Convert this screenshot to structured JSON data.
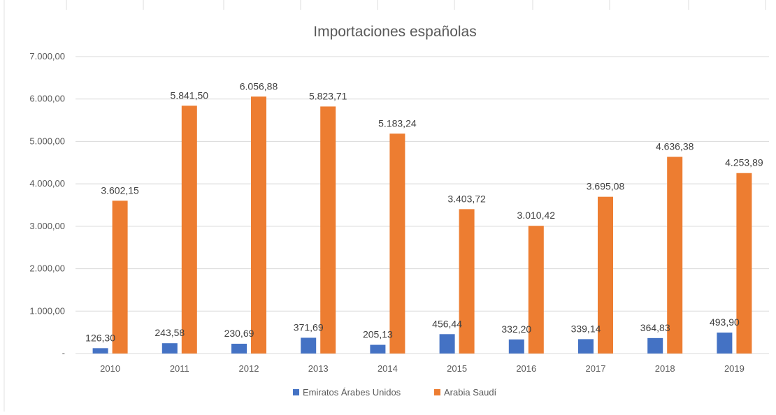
{
  "chart_data": {
    "type": "bar",
    "title": "Importaciones españolas",
    "categories": [
      "2010",
      "2011",
      "2012",
      "2013",
      "2014",
      "2015",
      "2016",
      "2017",
      "2018",
      "2019"
    ],
    "series": [
      {
        "name": "Emiratos Árabes Unidos",
        "values": [
          126.3,
          243.58,
          230.69,
          371.69,
          205.13,
          456.44,
          332.2,
          339.14,
          364.83,
          493.9
        ],
        "labels": [
          "126,30",
          "243,58",
          "230,69",
          "371,69",
          "205,13",
          "456,44",
          "332,20",
          "339,14",
          "364,83",
          "493,90"
        ],
        "color": "#4472C4"
      },
      {
        "name": "Arabia Saudí",
        "values": [
          3602.15,
          5841.5,
          6056.88,
          5823.71,
          5183.24,
          3403.72,
          3010.42,
          3695.08,
          4636.38,
          4253.89
        ],
        "labels": [
          "3.602,15",
          "5.841,50",
          "6.056,88",
          "5.823,71",
          "5.183,24",
          "3.403,72",
          "3.010,42",
          "3.695,08",
          "4.636,38",
          "4.253,89"
        ],
        "color": "#ED7D31"
      }
    ],
    "ylim": [
      0,
      7000
    ],
    "yticks": [
      0,
      1000,
      2000,
      3000,
      4000,
      5000,
      6000,
      7000
    ],
    "ytick_labels": [
      "-",
      "1.000,00",
      "2.000,00",
      "3.000,00",
      "4.000,00",
      "5.000,00",
      "6.000,00",
      "7.000,00"
    ],
    "xlabel": "",
    "ylabel": "",
    "grid": true,
    "legend_position": "bottom"
  }
}
